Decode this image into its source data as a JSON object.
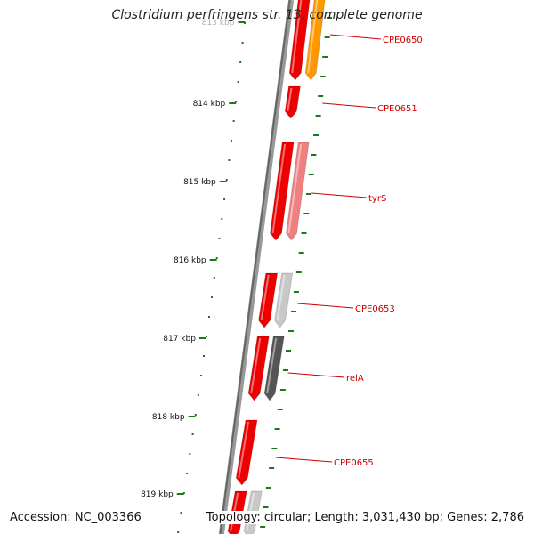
{
  "title": "Clostridium perfringens str. 13, complete genome",
  "footer": {
    "accession": "Accession: NC_003366",
    "summary": "Topology: circular; Length: 3,031,430 bp; Genes: 2,786"
  },
  "colors": {
    "backbone": "#7a7a7a",
    "tick": "#1a7a1a",
    "cds_strand": "#ee0000",
    "gene_label": "#cc0000",
    "leader_line": "#cc0000"
  },
  "ticks": [
    {
      "label": "813 kbp"
    },
    {
      "label": "814 kbp"
    },
    {
      "label": "815 kbp"
    },
    {
      "label": "816 kbp"
    },
    {
      "label": "817 kbp"
    },
    {
      "label": "818 kbp"
    },
    {
      "label": "819 kbp"
    }
  ],
  "genes": [
    {
      "label": "CPE0650",
      "color": "#ff9900"
    },
    {
      "label": "CPE0651",
      "color": "#ee0000"
    },
    {
      "label": "tyrS",
      "color": "#f08080"
    },
    {
      "label": "CPE0653",
      "color": "#c8c8c8"
    },
    {
      "label": "relA",
      "color": "#555555"
    },
    {
      "label": "CPE0655",
      "color": "#ee0000"
    },
    {
      "label": "",
      "color": "#c8c8c8"
    }
  ]
}
